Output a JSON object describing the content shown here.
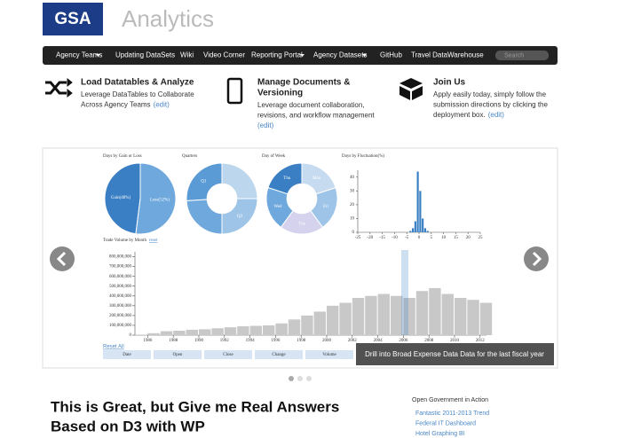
{
  "header": {
    "logo": "GSA",
    "title": "Analytics"
  },
  "nav": {
    "items": [
      "Agency Teams",
      "Updating DataSets",
      "Wiki",
      "Video Corner",
      "Reporting Portal",
      "Agency Datasets",
      "GitHub",
      "Travel DataWarehouse"
    ],
    "search": "Search"
  },
  "features": [
    {
      "title": "Load Datatables & Analyze",
      "text": [
        "Leverage DataTables to Collaborate",
        "Across Agency Teams"
      ],
      "edit": "(edit)"
    },
    {
      "title": [
        "Manage Documents &",
        "Versioning"
      ],
      "text": [
        "Leverage document collaboration,",
        "revisions, and workflow management"
      ],
      "edit": "(edit)"
    },
    {
      "title": "Join Us",
      "text": [
        "Apply easily today, simply follow the",
        "submission directions by clicking the",
        "deployment box."
      ],
      "edit": "(edit)"
    }
  ],
  "carousel": {
    "pies": [
      {
        "title": "Days by Gain or Loss",
        "inner": 0,
        "categories": [
          "Gain(48%)",
          "Loss(52%)"
        ],
        "values": [
          48,
          52
        ],
        "colors": [
          "#3a7fc3",
          "#6fa8dc"
        ]
      },
      {
        "title": "Quarters",
        "inner": 0.42,
        "categories": [
          "Q1",
          null,
          "Q3",
          null
        ],
        "values": [
          26,
          24,
          25,
          25
        ],
        "colors": [
          "#5b9bd5",
          "#6fa8dc",
          "#9ec5e8",
          "#bcd6ee"
        ]
      },
      {
        "title": "Day of Week",
        "inner": 0.42,
        "categories": [
          "Thu",
          "Wed",
          "Tue",
          "Fri",
          "Mon"
        ],
        "values": [
          20,
          20,
          20,
          20,
          20
        ],
        "colors": [
          "#3a7fc3",
          "#6fa8dc",
          "#d4d2ec",
          "#9ec5e8",
          "#c6dbef"
        ]
      }
    ],
    "histogram": {
      "title": "Days by Fluctuation(%)",
      "bins": [
        -4,
        -3,
        -2,
        -1,
        0,
        1,
        2,
        3,
        4
      ],
      "counts": [
        1,
        3,
        8,
        44,
        30,
        10,
        3,
        1
      ],
      "color": "#3a7fc3",
      "xlim": [
        -25,
        25
      ],
      "xticks": [
        -25,
        -20,
        -15,
        -10,
        -5,
        0,
        5,
        10,
        15,
        20,
        25
      ],
      "ylim": [
        0,
        45
      ],
      "yticks": [
        0,
        10,
        20,
        30,
        40
      ]
    },
    "volume": {
      "title": "Trade Volume by Month",
      "reset": "reset",
      "color": "#c8c8c8",
      "x": [
        1985,
        1986,
        1987,
        1988,
        1989,
        1990,
        1991,
        1992,
        1993,
        1994,
        1995,
        1996,
        1997,
        1998,
        1999,
        2000,
        2001,
        2002,
        2003,
        2004,
        2005,
        2006,
        2007,
        2008,
        2009,
        2010,
        2011,
        2012
      ],
      "values": [
        5000000,
        20000000,
        40000000,
        45000000,
        55000000,
        60000000,
        70000000,
        80000000,
        90000000,
        95000000,
        100000000,
        120000000,
        160000000,
        200000000,
        240000000,
        300000000,
        330000000,
        380000000,
        400000000,
        420000000,
        400000000,
        380000000,
        450000000,
        480000000,
        420000000,
        380000000,
        360000000,
        330000000
      ],
      "xlim": [
        1985,
        2012.5
      ],
      "xticks": [
        1986,
        1988,
        1990,
        1992,
        1994,
        1996,
        1998,
        2000,
        2002,
        2004,
        2006,
        2008,
        2010,
        2012
      ],
      "ylim": [
        0,
        850000000
      ],
      "yticks": [
        0,
        {
          "value": 100000000,
          "label": "100,000,000"
        },
        {
          "value": 200000000,
          "label": "200,000,000"
        },
        {
          "value": 300000000,
          "label": "300,000,000"
        },
        {
          "value": 400000000,
          "label": "400,000,000"
        },
        {
          "value": 500000000,
          "label": "500,000,000"
        },
        {
          "value": 600000000,
          "label": "600,000,000"
        },
        {
          "value": 700000000,
          "label": "700,000,000"
        },
        {
          "value": 800000000,
          "label": "800,000,000"
        }
      ]
    },
    "reset_all": "Reset All",
    "columns": [
      "Date",
      "Open",
      "Close",
      "Change",
      "Volume"
    ],
    "tooltip": "Drill into Broad Expense Data Data for the last fiscal year"
  },
  "article": {
    "heading": [
      "This is Great, but Give me Real Answers",
      "Based on D3 with WP"
    ]
  },
  "sidebar": {
    "title": "Open Government in Action",
    "links": [
      "Fantastic 2011-2013 Trend",
      "Federal IT Dashboard",
      "Hotel Graphing BI"
    ]
  }
}
